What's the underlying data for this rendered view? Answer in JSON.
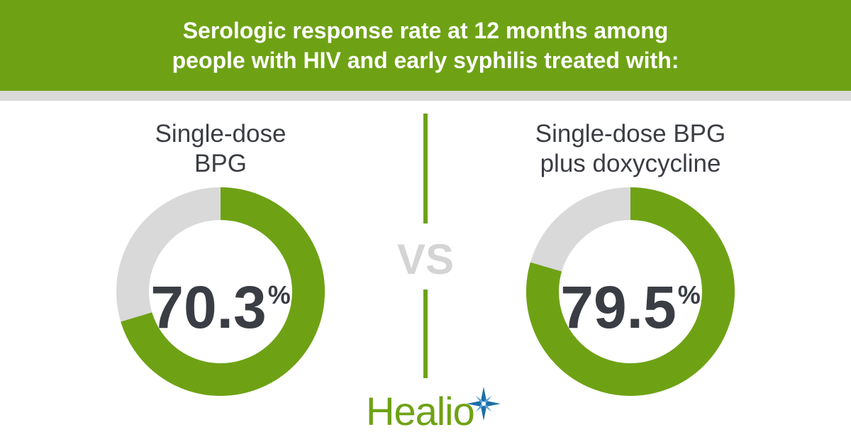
{
  "header": {
    "line1": "Serologic response rate at 12 months among",
    "line2": "people with HIV and early syphilis treated with:"
  },
  "vs_label": "VS",
  "logo": {
    "text": "Healio"
  },
  "colors": {
    "accent": "#6ea214",
    "track": "#d9d9d9",
    "text_dark": "#3a3d43",
    "vs_gray": "#d4d4d4"
  },
  "chart_data": [
    {
      "type": "pie",
      "title_lines": [
        "Single-dose",
        "BPG"
      ],
      "value": 70.3,
      "value_label": "70.3",
      "unit": "%",
      "max": 100
    },
    {
      "type": "pie",
      "title_lines": [
        "Single-dose BPG",
        "plus doxycycline"
      ],
      "value": 79.5,
      "value_label": "79.5",
      "unit": "%",
      "max": 100
    }
  ]
}
